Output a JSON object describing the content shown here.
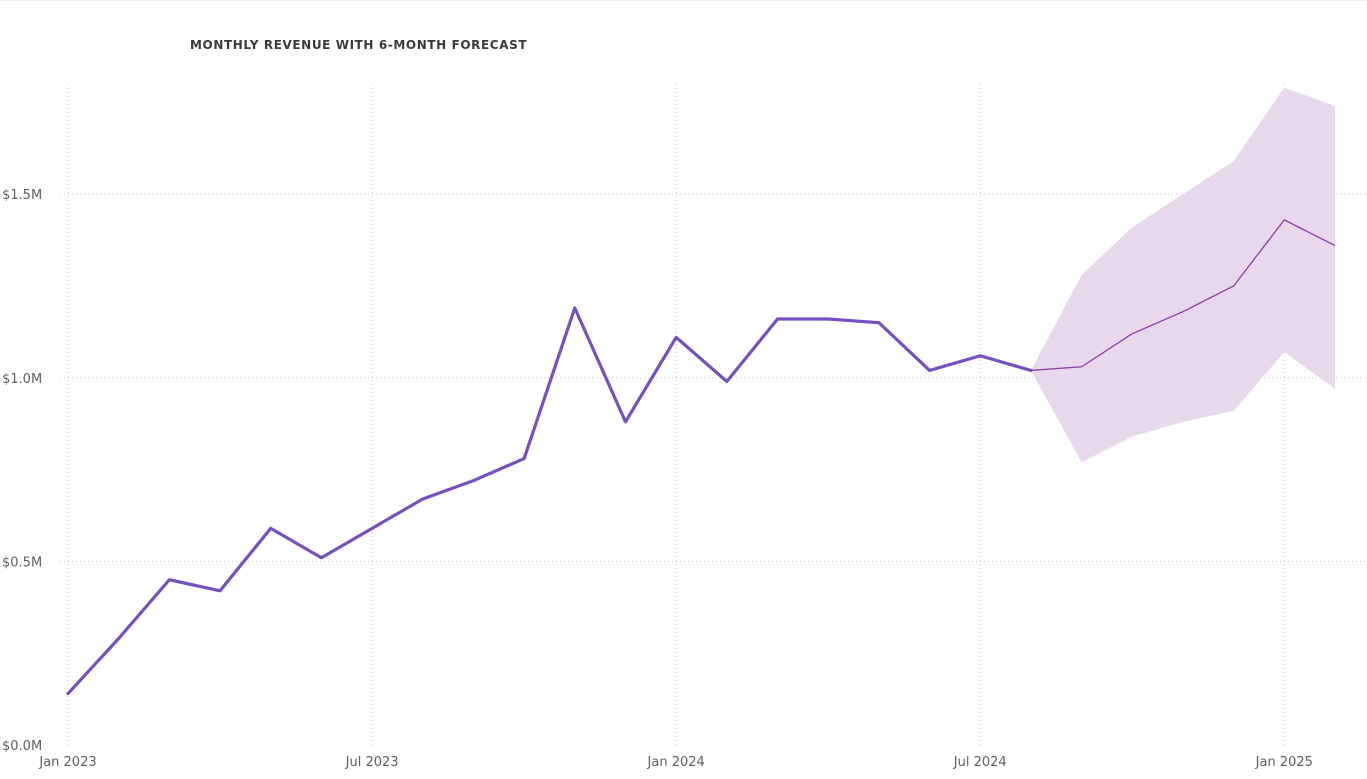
{
  "chart_data": {
    "type": "line",
    "title": "MONTHLY REVENUE WITH 6-MONTH FORECAST",
    "xlabel": "",
    "ylabel": "",
    "x": [
      "2023-01",
      "2023-02",
      "2023-03",
      "2023-04",
      "2023-05",
      "2023-06",
      "2023-07",
      "2023-08",
      "2023-09",
      "2023-10",
      "2023-11",
      "2023-12",
      "2024-01",
      "2024-02",
      "2024-03",
      "2024-04",
      "2024-05",
      "2024-06",
      "2024-07",
      "2024-08"
    ],
    "series": [
      {
        "values": [
          0.14,
          0.29,
          0.45,
          0.42,
          0.59,
          0.51,
          0.59,
          0.67,
          0.72,
          0.78,
          1.19,
          0.88,
          1.11,
          0.99,
          1.16,
          1.16,
          1.15,
          1.02,
          1.06,
          1.02
        ],
        "color": "#7650c0"
      }
    ],
    "forecast": {
      "x": [
        "2024-08",
        "2024-09",
        "2024-10",
        "2024-11",
        "2024-12",
        "2025-01",
        "2025-02"
      ],
      "values": [
        1.02,
        1.03,
        1.12,
        1.18,
        1.25,
        1.43,
        1.36
      ],
      "lower": [
        1.02,
        0.77,
        0.84,
        0.88,
        0.91,
        1.07,
        0.97
      ],
      "upper": [
        1.02,
        1.28,
        1.41,
        1.5,
        1.59,
        1.79,
        1.74
      ],
      "line_color": "#8a3fa5",
      "band_color": "#e7d8ec"
    },
    "ylim": [
      0,
      1.8
    ],
    "xlim": [
      "2023-01",
      "2025-02"
    ],
    "y_ticks": [
      0,
      0.5,
      1.0,
      1.5
    ],
    "y_tick_labels": [
      "$0.0M",
      "$0.5M",
      "$1.0M",
      "$1.5M"
    ],
    "x_ticks": [
      "2023-01",
      "2023-07",
      "2024-01",
      "2024-07",
      "2025-01"
    ],
    "x_tick_labels": [
      "Jan 2023",
      "Jul 2023",
      "Jan 2024",
      "Jul 2024",
      "Jan 2025"
    ],
    "grid": true,
    "legend": "none"
  }
}
